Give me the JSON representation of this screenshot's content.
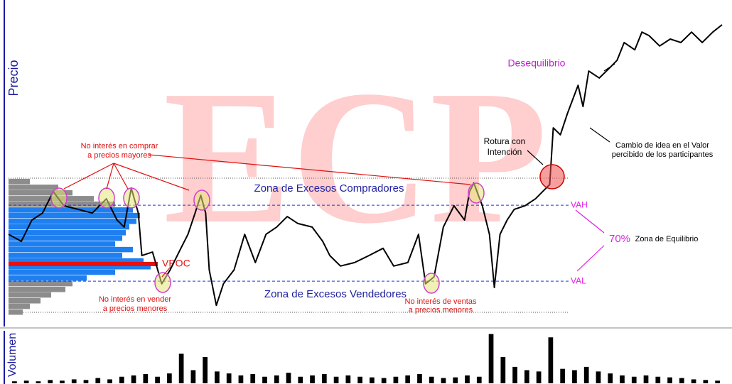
{
  "watermark": "ECP",
  "chart_data": {
    "type": "line",
    "y_label": "Precio",
    "volume_label": "Volumen",
    "color": "#000000",
    "xlim": [
      0,
      1008
    ],
    "ylim": [
      0,
      100
    ],
    "x": [
      0,
      18,
      33,
      48,
      63,
      78,
      98,
      118,
      138,
      153,
      163,
      173,
      183,
      188,
      203,
      216,
      228,
      243,
      253,
      263,
      271,
      278,
      283,
      293,
      303,
      318,
      333,
      348,
      363,
      378,
      393,
      408,
      428,
      443,
      453,
      468,
      488,
      508,
      528,
      543,
      563,
      578,
      588,
      600,
      613,
      628,
      643,
      650,
      656,
      668,
      678,
      685,
      693,
      703,
      713,
      728,
      743,
      753,
      763,
      768,
      778,
      788,
      803,
      810,
      818,
      833,
      848,
      858,
      868,
      883,
      893,
      903,
      918,
      933,
      948,
      963,
      978,
      993,
      1006
    ],
    "series": [
      {
        "name": "Precio",
        "color": "#000000",
        "values": [
          26.8,
          24.4,
          31.7,
          34.1,
          41.5,
          36.6,
          35.4,
          34.1,
          39.0,
          31.7,
          29.3,
          42.7,
          34.1,
          19.5,
          20.7,
          9.8,
          14.6,
          22.0,
          26.8,
          34.1,
          40.2,
          34.1,
          14.6,
          2.4,
          9.8,
          14.6,
          26.8,
          17.1,
          26.8,
          29.3,
          32.9,
          30.5,
          29.3,
          24.4,
          19.5,
          15.9,
          17.1,
          19.5,
          22.0,
          15.9,
          17.1,
          26.8,
          9.8,
          12.2,
          29.3,
          36.6,
          31.7,
          41.5,
          44.4,
          36.6,
          26.8,
          8.5,
          26.8,
          31.7,
          35.4,
          36.6,
          39.0,
          41.5,
          43.9,
          63.4,
          61.0,
          68.3,
          78.0,
          70.7,
          82.9,
          80.5,
          84.1,
          86.6,
          92.7,
          90.2,
          96.3,
          95.1,
          91.5,
          93.9,
          92.7,
          96.3,
          92.7,
          96.3,
          98.8
        ]
      }
    ],
    "profile": {
      "levels": [
        44.9,
        42.9,
        41.0,
        39.0,
        37.1,
        35.1,
        33.2,
        31.2,
        29.3,
        27.3,
        25.4,
        23.4,
        21.5,
        19.5,
        17.6,
        15.6,
        13.7,
        11.7,
        9.8,
        7.8,
        5.9,
        3.9,
        2.0,
        0
      ],
      "values": [
        30,
        70,
        90,
        120,
        150,
        175,
        185,
        180,
        170,
        165,
        160,
        150,
        175,
        160,
        190,
        200,
        150,
        110,
        90,
        80,
        60,
        45,
        30,
        20
      ],
      "color": "#1e7ff0",
      "outside_color": "#8c8c8c"
    },
    "vpoc": {
      "label": "VPOC",
      "level": 16.6,
      "value": 210,
      "color": "#e81010"
    },
    "vah": {
      "label": "VAH",
      "value": 36.8
    },
    "val": {
      "label": "VAL",
      "value": 10.7
    },
    "volume": {
      "ylim": [
        0,
        80
      ],
      "color": "#000000",
      "values": [
        3,
        4,
        3,
        5,
        4,
        6,
        5,
        8,
        6,
        10,
        12,
        14,
        10,
        15,
        45,
        20,
        40,
        18,
        15,
        12,
        14,
        10,
        12,
        16,
        10,
        12,
        14,
        10,
        12,
        10,
        9,
        8,
        10,
        12,
        14,
        10,
        8,
        9,
        12,
        10,
        75,
        40,
        25,
        20,
        18,
        70,
        22,
        20,
        25,
        18,
        15,
        12,
        10,
        12,
        10,
        9,
        8,
        6,
        5,
        4
      ]
    },
    "annotations": {
      "desequilibrio": "Desequilibrio",
      "comprar": [
        "No interés en comprar",
        "a precios mayores"
      ],
      "compradores": "Zona de Excesos Compradores",
      "vendedores": "Zona de Excesos Vendedores",
      "vender": [
        "No interés en vender",
        "a precios menores"
      ],
      "ventas": [
        "No interés de ventas",
        "a precios menores"
      ],
      "rotura": [
        "Rotura con",
        "Intención"
      ],
      "cambio": [
        "Cambio de idea en el Valor",
        "percibido de los participantes"
      ],
      "pct": "70%",
      "equilibrio": "Zona de Equilibrio"
    }
  }
}
